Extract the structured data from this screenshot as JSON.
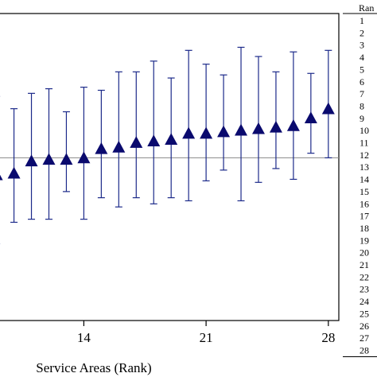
{
  "chart_data": {
    "type": "scatter",
    "marker": "triangle-up",
    "error_bars": true,
    "xlabel": "Service Areas (Rank)",
    "x_ticks": [
      14,
      21,
      28
    ],
    "xlim": [
      9.2,
      28.6
    ],
    "ylim": [
      0.0,
      1.0
    ],
    "reference_line": 0.53,
    "grid": false,
    "colors": {
      "marker": "#0a0a6e",
      "error_bar": "#1c2a8a",
      "reference_line": "#888888",
      "frame": "#000000"
    },
    "points": [
      {
        "rank": 9,
        "y": 0.475,
        "low": 0.25,
        "high": 0.73
      },
      {
        "rank": 10,
        "y": 0.48,
        "low": 0.32,
        "high": 0.69
      },
      {
        "rank": 11,
        "y": 0.52,
        "low": 0.33,
        "high": 0.74
      },
      {
        "rank": 12,
        "y": 0.525,
        "low": 0.33,
        "high": 0.755
      },
      {
        "rank": 13,
        "y": 0.525,
        "low": 0.42,
        "high": 0.68
      },
      {
        "rank": 14,
        "y": 0.53,
        "low": 0.33,
        "high": 0.76
      },
      {
        "rank": 15,
        "y": 0.56,
        "low": 0.4,
        "high": 0.75
      },
      {
        "rank": 16,
        "y": 0.565,
        "low": 0.37,
        "high": 0.81
      },
      {
        "rank": 17,
        "y": 0.58,
        "low": 0.4,
        "high": 0.81
      },
      {
        "rank": 18,
        "y": 0.585,
        "low": 0.38,
        "high": 0.845
      },
      {
        "rank": 19,
        "y": 0.59,
        "low": 0.4,
        "high": 0.79
      },
      {
        "rank": 20,
        "y": 0.61,
        "low": 0.39,
        "high": 0.88
      },
      {
        "rank": 21,
        "y": 0.61,
        "low": 0.455,
        "high": 0.835
      },
      {
        "rank": 22,
        "y": 0.615,
        "low": 0.49,
        "high": 0.8
      },
      {
        "rank": 23,
        "y": 0.62,
        "low": 0.39,
        "high": 0.89
      },
      {
        "rank": 24,
        "y": 0.625,
        "low": 0.45,
        "high": 0.86
      },
      {
        "rank": 25,
        "y": 0.63,
        "low": 0.495,
        "high": 0.81
      },
      {
        "rank": 26,
        "y": 0.635,
        "low": 0.46,
        "high": 0.875
      },
      {
        "rank": 27,
        "y": 0.66,
        "low": 0.545,
        "high": 0.805
      },
      {
        "rank": 28,
        "y": 0.69,
        "low": 0.53,
        "high": 0.88
      }
    ]
  },
  "rank_table": {
    "header": "Ran",
    "values": [
      "1",
      "2",
      "3",
      "4",
      "5",
      "6",
      "7",
      "8",
      "9",
      "10",
      "11",
      "12",
      "13",
      "14",
      "15",
      "16",
      "17",
      "18",
      "19",
      "20",
      "21",
      "22",
      "23",
      "24",
      "25",
      "26",
      "27",
      "28"
    ]
  }
}
